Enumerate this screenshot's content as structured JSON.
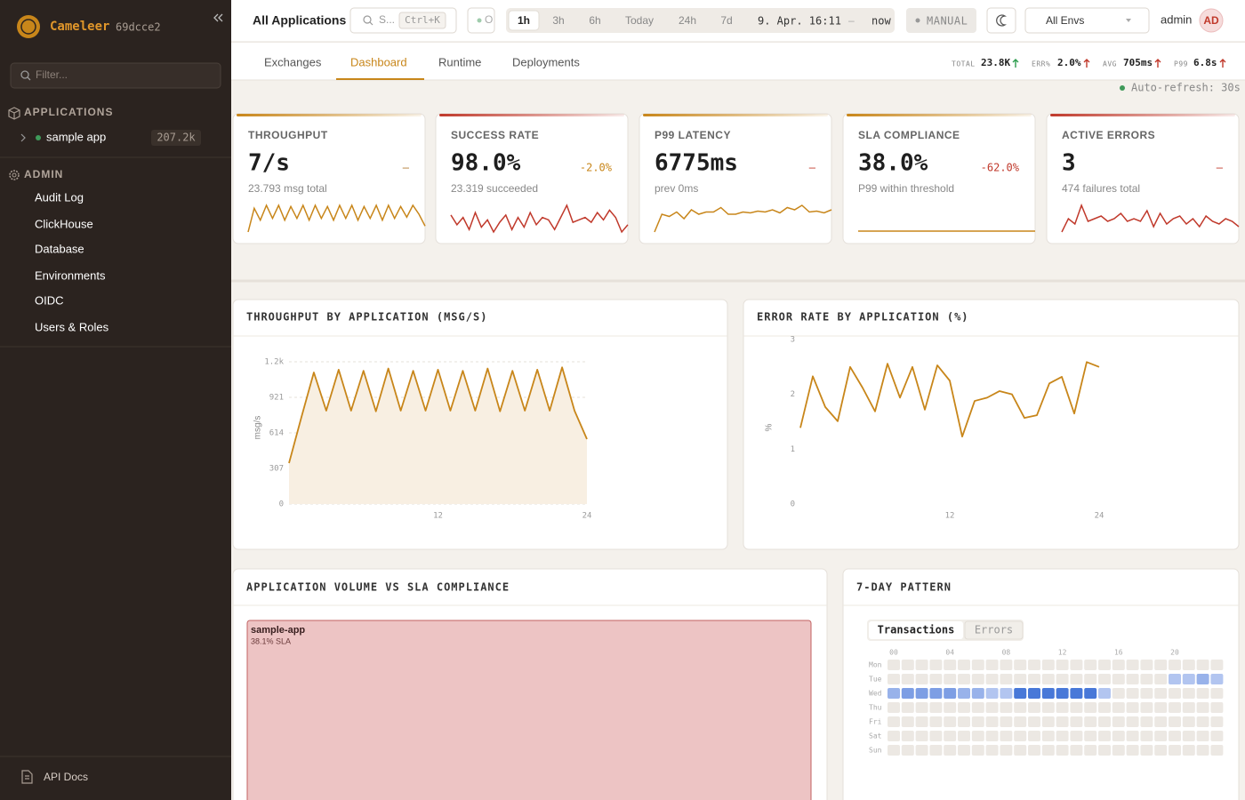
{
  "sidebar": {
    "brand": "Cameleer",
    "version": "69dcce2",
    "filter_placeholder": "Filter...",
    "applications_heading": "APPLICATIONS",
    "applications": [
      {
        "name": "sample app",
        "count": "207.2k",
        "status_color": "#3f9a5a"
      }
    ],
    "admin_heading": "ADMIN",
    "admin_items": [
      "Audit Log",
      "ClickHouse",
      "Database",
      "Environments",
      "OIDC",
      "Users & Roles"
    ],
    "api_docs": "API Docs"
  },
  "topbar": {
    "title": "All Applications",
    "search_placeholder": "S...",
    "search_shortcut": "Ctrl+K",
    "status": "O",
    "ranges": [
      "1h",
      "3h",
      "6h",
      "Today",
      "24h",
      "7d"
    ],
    "selected_range": 0,
    "from": "9. Apr. 16:11",
    "separator": "–",
    "to": "now",
    "mode": "MANUAL",
    "environment": "All Envs",
    "user": "admin",
    "avatar": "AD"
  },
  "tabs": {
    "items": [
      "Exchanges",
      "Dashboard",
      "Runtime",
      "Deployments"
    ],
    "selected": 1
  },
  "summary": [
    {
      "label": "TOTAL",
      "value": "23.8K",
      "trend_color": "#2e9d4f"
    },
    {
      "label": "ERR%",
      "value": "2.0%",
      "trend_color": "#c0392b"
    },
    {
      "label": "AVG",
      "value": "705ms",
      "trend_color": "#c0392b"
    },
    {
      "label": "P99",
      "value": "6.8s",
      "trend_color": "#c0392b"
    }
  ],
  "auto_refresh": "Auto-refresh: 30s",
  "kpis": [
    {
      "label": "THROUGHPUT",
      "value": "7/s",
      "delta": "–",
      "delta_color": "#b07a30",
      "subtitle": "23.793 msg total",
      "color": "#c8861a",
      "sparkline": [
        5,
        45,
        25,
        50,
        28,
        50,
        25,
        48,
        28,
        50,
        25,
        50,
        28,
        48,
        25,
        50,
        28,
        50,
        25,
        48,
        28,
        50,
        25,
        50,
        28,
        48,
        30,
        50,
        35,
        15
      ]
    },
    {
      "label": "SUCCESS RATE",
      "value": "98.0%",
      "delta": "-2.0%",
      "delta_color": "#c8861a",
      "subtitle": "23.319 succeeded",
      "color": "#c0392b",
      "sparkline": [
        50,
        30,
        45,
        20,
        55,
        25,
        40,
        15,
        35,
        50,
        20,
        45,
        25,
        55,
        30,
        45,
        40,
        20,
        45,
        70,
        35,
        40,
        45,
        35,
        55,
        40,
        60,
        45,
        15,
        30
      ]
    },
    {
      "label": "P99 LATENCY",
      "value": "6775ms",
      "delta": "–",
      "delta_color": "#c0392b",
      "subtitle": "prev 0ms",
      "color": "#c8861a",
      "sparkline": [
        5,
        45,
        40,
        50,
        35,
        55,
        45,
        50,
        50,
        60,
        45,
        45,
        50,
        48,
        52,
        50,
        55,
        48,
        60,
        55,
        65,
        50,
        52,
        48,
        55
      ]
    },
    {
      "label": "SLA COMPLIANCE",
      "value": "38.0%",
      "delta": "-62.0%",
      "delta_color": "#c0392b",
      "subtitle": "P99 within threshold",
      "color": "#c8861a",
      "sparkline": [
        0,
        0,
        0,
        0,
        0,
        0,
        0,
        0,
        0,
        0
      ]
    },
    {
      "label": "ACTIVE ERRORS",
      "value": "3",
      "delta": "–",
      "delta_color": "#c0392b",
      "subtitle": "474 failures total",
      "color": "#c0392b",
      "sparkline": [
        20,
        45,
        35,
        70,
        40,
        45,
        50,
        40,
        45,
        55,
        40,
        45,
        40,
        60,
        30,
        55,
        35,
        45,
        50,
        35,
        45,
        30,
        50,
        40,
        35,
        45,
        40,
        30
      ]
    }
  ],
  "chart_data": [
    {
      "type": "area",
      "title": "THROUGHPUT BY APPLICATION (MSG/S)",
      "y_label": "msg/s",
      "color": "#c8861a",
      "fill": "#f8efe2",
      "grid": true,
      "x": [
        0,
        1,
        2,
        3,
        4,
        5,
        6,
        7,
        8,
        9,
        10,
        11,
        12,
        13,
        14,
        15,
        16,
        17,
        18,
        19,
        20,
        21,
        22,
        23,
        24
      ],
      "values": [
        353,
        750,
        1136,
        806,
        1160,
        806,
        1150,
        800,
        1170,
        806,
        1150,
        806,
        1160,
        806,
        1150,
        806,
        1170,
        800,
        1150,
        806,
        1160,
        806,
        1180,
        806,
        560
      ],
      "xlim": [
        0,
        24
      ],
      "xticks": [
        12,
        24
      ],
      "ylim": [
        0,
        1228
      ],
      "yticks": [
        0,
        307,
        614,
        921,
        {
          "value": 1228,
          "label": "1.2k"
        }
      ]
    },
    {
      "type": "line",
      "title": "ERROR RATE BY APPLICATION (%)",
      "y_label": "%",
      "color": "#c8861a",
      "grid": false,
      "x": [
        0,
        1,
        2,
        3,
        4,
        5,
        6,
        7,
        8,
        9,
        10,
        11,
        12,
        13,
        14,
        15,
        16,
        17,
        18,
        19,
        20,
        21,
        22,
        23,
        24
      ],
      "values": [
        1.39,
        2.33,
        1.77,
        1.51,
        2.5,
        2.12,
        1.69,
        2.56,
        1.94,
        2.5,
        1.72,
        2.53,
        2.25,
        1.23,
        1.88,
        1.94,
        2.06,
        2.0,
        1.57,
        1.62,
        2.2,
        2.32,
        1.65,
        2.59,
        2.5
      ],
      "xlim": [
        0,
        24
      ],
      "xticks": [
        12,
        24
      ],
      "ylim": [
        0,
        3
      ],
      "yticks": [
        0,
        1,
        2,
        3
      ]
    }
  ],
  "volume": {
    "title": "APPLICATION VOLUME VS SLA COMPLIANCE",
    "items": [
      {
        "name": "sample-app",
        "label": "38.1% SLA",
        "color": "#edc4c4",
        "border": "#c26262"
      }
    ]
  },
  "pattern": {
    "title": "7-DAY PATTERN",
    "modes": [
      "Transactions",
      "Errors"
    ],
    "selected_mode": 0,
    "hours": [
      "00",
      "04",
      "08",
      "12",
      "16",
      "20"
    ],
    "days": [
      "Mon",
      "Tue",
      "Wed",
      "Thu",
      "Fri",
      "Sat",
      "Sun"
    ],
    "values": [
      [
        0,
        0,
        0,
        0,
        0,
        0,
        0,
        0,
        0,
        0,
        0,
        0,
        0,
        0,
        0,
        0,
        0,
        0,
        0,
        0,
        0,
        0,
        0,
        0
      ],
      [
        0,
        0,
        0,
        0,
        0,
        0,
        0,
        0,
        0,
        0,
        0,
        0,
        0,
        0,
        0,
        0,
        0,
        0,
        0,
        0,
        1,
        1,
        2,
        1
      ],
      [
        2,
        3,
        3,
        3,
        3,
        2,
        2,
        1,
        1,
        5,
        5,
        5,
        5,
        5,
        5,
        1,
        0,
        0,
        0,
        0,
        0,
        0,
        0,
        0
      ],
      [
        0,
        0,
        0,
        0,
        0,
        0,
        0,
        0,
        0,
        0,
        0,
        0,
        0,
        0,
        0,
        0,
        0,
        0,
        0,
        0,
        0,
        0,
        0,
        0
      ],
      [
        0,
        0,
        0,
        0,
        0,
        0,
        0,
        0,
        0,
        0,
        0,
        0,
        0,
        0,
        0,
        0,
        0,
        0,
        0,
        0,
        0,
        0,
        0,
        0
      ],
      [
        0,
        0,
        0,
        0,
        0,
        0,
        0,
        0,
        0,
        0,
        0,
        0,
        0,
        0,
        0,
        0,
        0,
        0,
        0,
        0,
        0,
        0,
        0,
        0
      ],
      [
        0,
        0,
        0,
        0,
        0,
        0,
        0,
        0,
        0,
        0,
        0,
        0,
        0,
        0,
        0,
        0,
        0,
        0,
        0,
        0,
        0,
        0,
        0,
        0
      ]
    ]
  }
}
